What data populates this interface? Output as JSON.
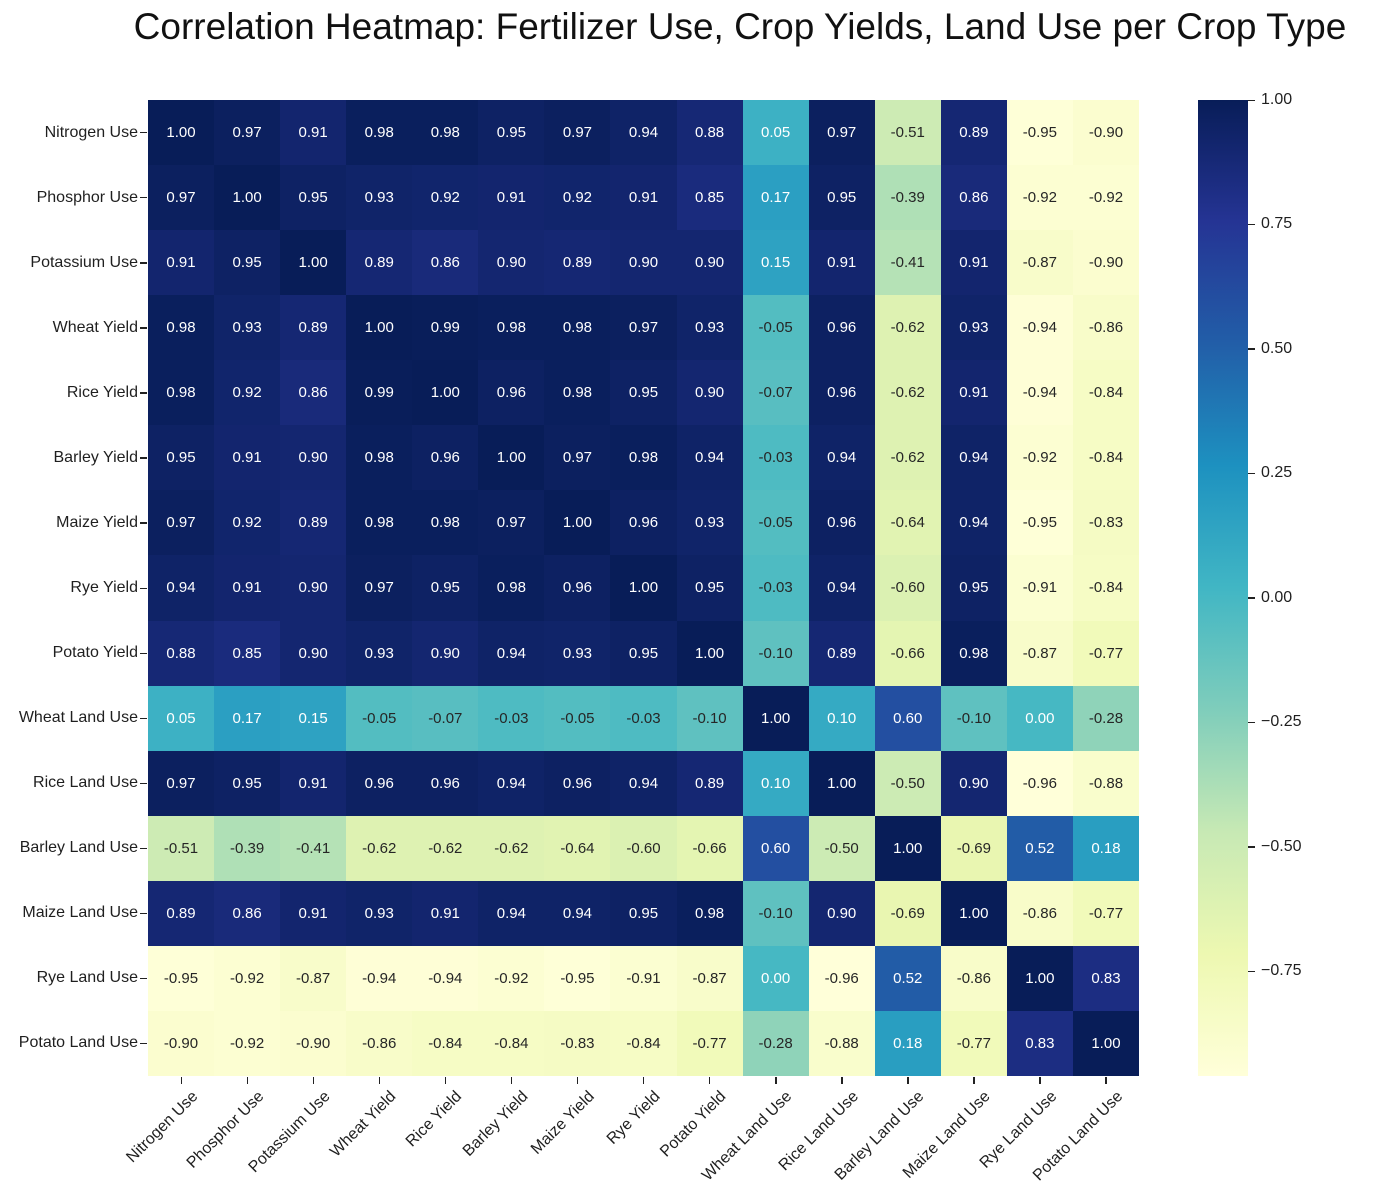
{
  "title": "Correlation Heatmap: Fertilizer Use, Crop Yields, Land Use per Crop Type",
  "chart_data": {
    "type": "heatmap",
    "title": "Correlation Heatmap: Fertilizer Use, Crop Yields, Land Use per Crop Type",
    "categories": [
      "Nitrogen Use",
      "Phosphor Use",
      "Potassium Use",
      "Wheat Yield",
      "Rice Yield",
      "Barley Yield",
      "Maize Yield",
      "Rye Yield",
      "Potato Yield",
      "Wheat Land Use",
      "Rice Land Use",
      "Barley Land Use",
      "Maize Land Use",
      "Rye Land Use",
      "Potato Land Use"
    ],
    "matrix": [
      [
        1.0,
        0.97,
        0.91,
        0.98,
        0.98,
        0.95,
        0.97,
        0.94,
        0.88,
        0.05,
        0.97,
        -0.51,
        0.89,
        -0.95,
        -0.9
      ],
      [
        0.97,
        1.0,
        0.95,
        0.93,
        0.92,
        0.91,
        0.92,
        0.91,
        0.85,
        0.17,
        0.95,
        -0.39,
        0.86,
        -0.92,
        -0.92
      ],
      [
        0.91,
        0.95,
        1.0,
        0.89,
        0.86,
        0.9,
        0.89,
        0.9,
        0.9,
        0.15,
        0.91,
        -0.41,
        0.91,
        -0.87,
        -0.9
      ],
      [
        0.98,
        0.93,
        0.89,
        1.0,
        0.99,
        0.98,
        0.98,
        0.97,
        0.93,
        -0.05,
        0.96,
        -0.62,
        0.93,
        -0.94,
        -0.86
      ],
      [
        0.98,
        0.92,
        0.86,
        0.99,
        1.0,
        0.96,
        0.98,
        0.95,
        0.9,
        -0.07,
        0.96,
        -0.62,
        0.91,
        -0.94,
        -0.84
      ],
      [
        0.95,
        0.91,
        0.9,
        0.98,
        0.96,
        1.0,
        0.97,
        0.98,
        0.94,
        -0.03,
        0.94,
        -0.62,
        0.94,
        -0.92,
        -0.84
      ],
      [
        0.97,
        0.92,
        0.89,
        0.98,
        0.98,
        0.97,
        1.0,
        0.96,
        0.93,
        -0.05,
        0.96,
        -0.64,
        0.94,
        -0.95,
        -0.83
      ],
      [
        0.94,
        0.91,
        0.9,
        0.97,
        0.95,
        0.98,
        0.96,
        1.0,
        0.95,
        -0.03,
        0.94,
        -0.6,
        0.95,
        -0.91,
        -0.84
      ],
      [
        0.88,
        0.85,
        0.9,
        0.93,
        0.9,
        0.94,
        0.93,
        0.95,
        1.0,
        -0.1,
        0.89,
        -0.66,
        0.98,
        -0.87,
        -0.77
      ],
      [
        0.05,
        0.17,
        0.15,
        -0.05,
        -0.07,
        -0.03,
        -0.05,
        -0.03,
        -0.1,
        1.0,
        0.1,
        0.6,
        -0.1,
        0.0,
        -0.28
      ],
      [
        0.97,
        0.95,
        0.91,
        0.96,
        0.96,
        0.94,
        0.96,
        0.94,
        0.89,
        0.1,
        1.0,
        -0.5,
        0.9,
        -0.96,
        -0.88
      ],
      [
        -0.51,
        -0.39,
        -0.41,
        -0.62,
        -0.62,
        -0.62,
        -0.64,
        -0.6,
        -0.66,
        0.6,
        -0.5,
        1.0,
        -0.69,
        0.52,
        0.18
      ],
      [
        0.89,
        0.86,
        0.91,
        0.93,
        0.91,
        0.94,
        0.94,
        0.95,
        0.98,
        -0.1,
        0.9,
        -0.69,
        1.0,
        -0.86,
        -0.77
      ],
      [
        -0.95,
        -0.92,
        -0.87,
        -0.94,
        -0.94,
        -0.92,
        -0.95,
        -0.91,
        -0.87,
        0.0,
        -0.96,
        0.52,
        -0.86,
        1.0,
        0.83
      ],
      [
        -0.9,
        -0.92,
        -0.9,
        -0.86,
        -0.84,
        -0.84,
        -0.83,
        -0.84,
        -0.77,
        -0.28,
        -0.88,
        0.18,
        -0.77,
        0.83,
        1.0
      ]
    ],
    "value_decimals": 2,
    "vmin": -0.96,
    "vmax": 1.0,
    "colormap": "YlGnBu",
    "colormap_stops": [
      "#ffffd9",
      "#edf8b1",
      "#c7e9b4",
      "#7fcdbb",
      "#41b6c4",
      "#1d91c0",
      "#225ea8",
      "#253494",
      "#081d58"
    ],
    "annotation_colors": {
      "light_text": "#ffffff",
      "dark_text": "#262626"
    },
    "colorbar": {
      "position": "right",
      "ticks": [
        {
          "label": "1.00",
          "value": 1.0
        },
        {
          "label": "0.75",
          "value": 0.75
        },
        {
          "label": "0.50",
          "value": 0.5
        },
        {
          "label": "0.25",
          "value": 0.25
        },
        {
          "label": "0.00",
          "value": 0.0
        },
        {
          "label": "−0.25",
          "value": -0.25
        },
        {
          "label": "−0.50",
          "value": -0.5
        },
        {
          "label": "−0.75",
          "value": -0.75
        }
      ]
    },
    "grid": false,
    "x_tick_rotation": 45
  }
}
